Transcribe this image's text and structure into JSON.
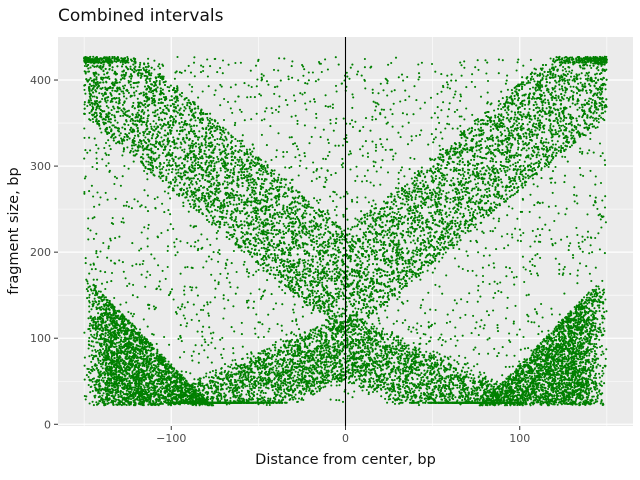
{
  "chart_data": {
    "type": "scatter",
    "title": "Combined intervals",
    "xlabel": "Distance from center, bp",
    "ylabel": "fragment size, bp",
    "xlim": [
      -165,
      165
    ],
    "ylim": [
      -2,
      450
    ],
    "x_ticks": [
      -100,
      0,
      100
    ],
    "y_ticks": [
      0,
      100,
      200,
      300,
      400
    ],
    "x_tick_labels": [
      "−100",
      "0",
      "100"
    ],
    "y_tick_labels": [
      "0",
      "100",
      "200",
      "300",
      "400"
    ],
    "grid": true,
    "legend": "none",
    "vertical_reference_line": 0,
    "point_color": "#008000",
    "panel_background": "#ebebeb",
    "grid_color": "#ffffff",
    "series": [
      {
        "region_samples": [
          {
            "region": "left descending band (upper-left to center)",
            "x": [
              -150,
              -120,
              -90,
              -60,
              -30,
              -10
            ],
            "y": [
              420,
              370,
              320,
              270,
              220,
              180
            ]
          },
          {
            "region": "right ascending band (center to upper-right)",
            "x": [
              10,
              30,
              60,
              90,
              120,
              150
            ],
            "y": [
              180,
              220,
              270,
              320,
              370,
              420
            ]
          },
          {
            "region": "lower-left dense triangle",
            "x": [
              -150,
              -150,
              -120,
              -100,
              -80
            ],
            "y": [
              30,
              175,
              80,
              50,
              30
            ]
          },
          {
            "region": "lower-right dense triangle",
            "x": [
              150,
              150,
              120,
              100,
              80
            ],
            "y": [
              30,
              175,
              80,
              50,
              30
            ]
          },
          {
            "region": "lower-center wedge",
            "x": [
              -50,
              -25,
              0,
              25,
              50
            ],
            "y": [
              40,
              70,
              110,
              70,
              40
            ]
          }
        ],
        "x_range": [
          -150,
          150
        ],
        "y_range": [
          20,
          427
        ]
      }
    ]
  }
}
